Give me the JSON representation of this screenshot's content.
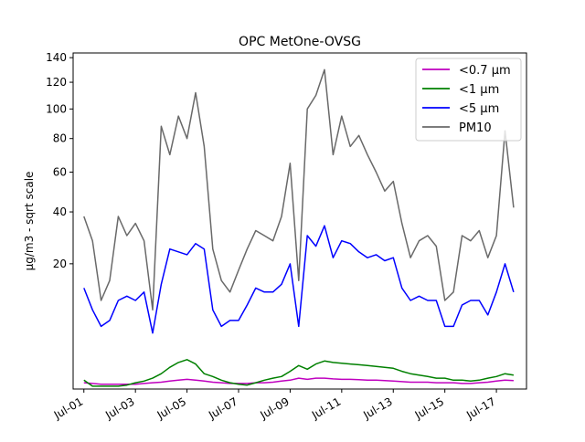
{
  "chart_data": {
    "type": "line",
    "title": "OPC MetOne-OVSG",
    "xlabel": "",
    "ylabel": "µg/m3 - sqrt scale",
    "y_scale": "sqrt",
    "ylim": [
      0,
      144
    ],
    "xlim": [
      "2021-06-30T14:00",
      "2021-07-18T04:00"
    ],
    "x_ticks": [
      "Jul-01",
      "Jul-03",
      "Jul-05",
      "Jul-07",
      "Jul-09",
      "Jul-11",
      "Jul-13",
      "Jul-15",
      "Jul-17"
    ],
    "x_tick_dates": [
      "2021-07-01",
      "2021-07-03",
      "2021-07-05",
      "2021-07-07",
      "2021-07-09",
      "2021-07-11",
      "2021-07-13",
      "2021-07-15",
      "2021-07-17"
    ],
    "y_ticks": [
      20,
      40,
      60,
      80,
      100,
      120,
      140
    ],
    "legend_position": "top-right",
    "grid": false,
    "x": [
      "2021-07-01T00:00",
      "2021-07-01T08:00",
      "2021-07-01T16:00",
      "2021-07-02T00:00",
      "2021-07-02T08:00",
      "2021-07-02T16:00",
      "2021-07-03T00:00",
      "2021-07-03T08:00",
      "2021-07-03T16:00",
      "2021-07-04T00:00",
      "2021-07-04T08:00",
      "2021-07-04T16:00",
      "2021-07-05T00:00",
      "2021-07-05T08:00",
      "2021-07-05T16:00",
      "2021-07-06T00:00",
      "2021-07-06T08:00",
      "2021-07-06T16:00",
      "2021-07-07T00:00",
      "2021-07-07T08:00",
      "2021-07-07T16:00",
      "2021-07-08T00:00",
      "2021-07-08T08:00",
      "2021-07-08T16:00",
      "2021-07-09T00:00",
      "2021-07-09T08:00",
      "2021-07-09T16:00",
      "2021-07-10T00:00",
      "2021-07-10T08:00",
      "2021-07-10T16:00",
      "2021-07-11T00:00",
      "2021-07-11T08:00",
      "2021-07-11T16:00",
      "2021-07-12T00:00",
      "2021-07-12T08:00",
      "2021-07-12T16:00",
      "2021-07-13T00:00",
      "2021-07-13T08:00",
      "2021-07-13T16:00",
      "2021-07-14T00:00",
      "2021-07-14T08:00",
      "2021-07-14T16:00",
      "2021-07-15T00:00",
      "2021-07-15T08:00",
      "2021-07-15T16:00",
      "2021-07-16T00:00",
      "2021-07-16T08:00",
      "2021-07-16T16:00",
      "2021-07-17T00:00",
      "2021-07-17T08:00",
      "2021-07-17T16:00"
    ],
    "series": [
      {
        "name": "<0.7 µm",
        "color": "#bf00bf",
        "values": [
          0.05,
          0.04,
          0.03,
          0.03,
          0.03,
          0.03,
          0.03,
          0.04,
          0.05,
          0.06,
          0.08,
          0.1,
          0.12,
          0.1,
          0.08,
          0.06,
          0.05,
          0.04,
          0.04,
          0.04,
          0.05,
          0.05,
          0.06,
          0.08,
          0.1,
          0.15,
          0.12,
          0.15,
          0.15,
          0.13,
          0.12,
          0.12,
          0.11,
          0.1,
          0.1,
          0.09,
          0.08,
          0.07,
          0.06,
          0.06,
          0.06,
          0.05,
          0.05,
          0.05,
          0.04,
          0.04,
          0.05,
          0.06,
          0.08,
          0.1,
          0.09
        ]
      },
      {
        "name": "<1 µm",
        "color": "#008000",
        "values": [
          0.1,
          0.01,
          0.01,
          0.01,
          0.01,
          0.02,
          0.05,
          0.08,
          0.15,
          0.3,
          0.6,
          0.9,
          1.1,
          0.8,
          0.3,
          0.2,
          0.1,
          0.05,
          0.03,
          0.02,
          0.05,
          0.1,
          0.15,
          0.2,
          0.4,
          0.7,
          0.5,
          0.8,
          1.0,
          0.9,
          0.85,
          0.8,
          0.75,
          0.7,
          0.65,
          0.6,
          0.55,
          0.4,
          0.3,
          0.25,
          0.2,
          0.15,
          0.15,
          0.1,
          0.1,
          0.08,
          0.1,
          0.15,
          0.2,
          0.3,
          0.25
        ]
      },
      {
        "name": "<5 µm",
        "color": "#0000ff",
        "values": [
          13,
          8,
          5,
          6,
          10,
          11,
          10,
          12,
          4,
          14,
          25,
          24,
          23,
          27,
          25,
          8,
          5,
          6,
          6,
          9,
          13,
          12,
          12,
          14,
          20,
          5,
          30,
          26,
          34,
          22,
          28,
          27,
          24,
          22,
          23,
          21,
          22,
          13,
          10,
          11,
          10,
          10,
          5,
          5,
          9,
          10,
          10,
          7,
          12,
          20,
          12
        ]
      },
      {
        "name": "PM10",
        "color": "#696969",
        "values": [
          38,
          28,
          10,
          15,
          38,
          30,
          35,
          28,
          8,
          88,
          70,
          95,
          80,
          112,
          75,
          25,
          15,
          12,
          18,
          25,
          32,
          30,
          28,
          38,
          65,
          15,
          100,
          110,
          130,
          70,
          95,
          75,
          82,
          70,
          60,
          50,
          55,
          35,
          22,
          28,
          30,
          26,
          10,
          12,
          30,
          28,
          32,
          22,
          30,
          85,
          42
        ]
      }
    ]
  }
}
